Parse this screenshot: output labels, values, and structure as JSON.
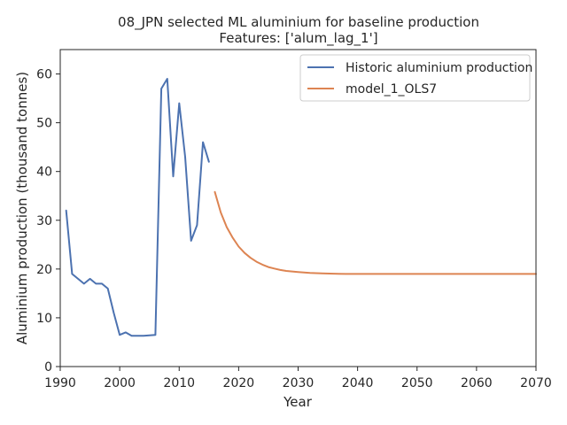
{
  "chart_data": {
    "type": "line",
    "title": "08_JPN selected ML aluminium for baseline production",
    "subtitle": "Features: ['alum_lag_1']",
    "xlabel": "Year",
    "ylabel": "Aluminium production (thousand tonnes)",
    "xlim": [
      1990,
      2070
    ],
    "ylim": [
      0,
      65
    ],
    "xticks": [
      1990,
      2000,
      2010,
      2020,
      2030,
      2040,
      2050,
      2060,
      2070
    ],
    "yticks": [
      0,
      10,
      20,
      30,
      40,
      50,
      60
    ],
    "grid": false,
    "legend_position": "top-right",
    "series": [
      {
        "name": "Historic aluminium production",
        "color": "#4c72b0",
        "x": [
          1991,
          1992,
          1993,
          1994,
          1995,
          1996,
          1997,
          1998,
          1999,
          2000,
          2001,
          2002,
          2003,
          2004,
          2005,
          2006,
          2007,
          2008,
          2009,
          2010,
          2011,
          2012,
          2013,
          2014,
          2015
        ],
        "y": [
          32,
          19,
          18,
          17,
          18,
          17,
          17,
          16,
          11,
          6.5,
          7,
          6.3,
          6.3,
          6.3,
          6.4,
          6.5,
          57,
          59,
          39,
          54,
          43,
          25.8,
          29,
          46,
          42
        ]
      },
      {
        "name": "model_1_OLS7",
        "color": "#dd8452",
        "x": [
          2016,
          2017,
          2018,
          2019,
          2020,
          2021,
          2022,
          2023,
          2024,
          2025,
          2026,
          2027,
          2028,
          2029,
          2030,
          2032,
          2034,
          2036,
          2038,
          2040,
          2045,
          2050,
          2055,
          2060,
          2065,
          2070
        ],
        "y": [
          35.8,
          31.6,
          28.6,
          26.4,
          24.6,
          23.3,
          22.3,
          21.5,
          20.9,
          20.4,
          20.1,
          19.8,
          19.6,
          19.5,
          19.4,
          19.2,
          19.1,
          19.05,
          19.0,
          19.0,
          19.0,
          19.0,
          19.0,
          19.0,
          19.0,
          19.0
        ]
      }
    ]
  }
}
